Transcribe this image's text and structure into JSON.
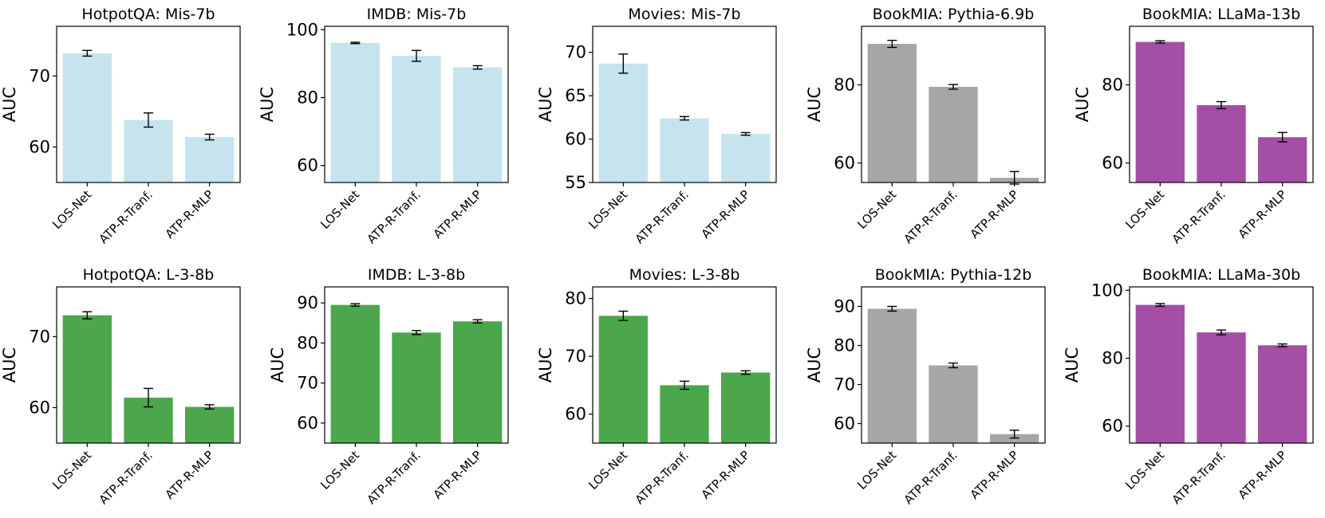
{
  "chart_data": [
    {
      "type": "bar",
      "title": "HotpotQA: Mis-7b",
      "ylabel": "AUC",
      "categories": [
        "LOS-Net",
        "ATP-R-Tranf.",
        "ATP-R-MLP"
      ],
      "values": [
        73.2,
        63.8,
        61.4
      ],
      "errors": [
        0.4,
        1.0,
        0.4
      ],
      "ylim": [
        55,
        77
      ],
      "yticks": [
        60,
        70
      ],
      "color": "#c5e4ee"
    },
    {
      "type": "bar",
      "title": "IMDB: Mis-7b",
      "ylabel": "AUC",
      "categories": [
        "LOS-Net",
        "ATP-R-Tranf.",
        "ATP-R-MLP"
      ],
      "values": [
        96.1,
        92.3,
        88.9
      ],
      "errors": [
        0.2,
        1.6,
        0.5
      ],
      "ylim": [
        55,
        101
      ],
      "yticks": [
        60,
        80,
        100
      ],
      "color": "#c5e4ee"
    },
    {
      "type": "bar",
      "title": "Movies: Mis-7b",
      "ylabel": "AUC",
      "categories": [
        "LOS-Net",
        "ATP-R-Tranf.",
        "ATP-R-MLP"
      ],
      "values": [
        68.7,
        62.4,
        60.6
      ],
      "errors": [
        1.1,
        0.2,
        0.15
      ],
      "ylim": [
        55,
        73
      ],
      "yticks": [
        55,
        60,
        65,
        70
      ],
      "color": "#c5e4ee"
    },
    {
      "type": "bar",
      "title": "BookMIA: Pythia-6.9b",
      "ylabel": "AUC",
      "categories": [
        "LOS-Net",
        "ATP-R-Tranf.",
        "ATP-R-MLP"
      ],
      "values": [
        90.5,
        79.5,
        56.2
      ],
      "errors": [
        0.9,
        0.6,
        1.6
      ],
      "ylim": [
        55,
        95
      ],
      "yticks": [
        60,
        80
      ],
      "color": "#a6a6a6"
    },
    {
      "type": "bar",
      "title": "BookMIA: LLaMa-13b",
      "ylabel": "AUC",
      "categories": [
        "LOS-Net",
        "ATP-R-Tranf.",
        "ATP-R-MLP"
      ],
      "values": [
        91.0,
        74.8,
        66.6
      ],
      "errors": [
        0.3,
        0.9,
        1.2
      ],
      "ylim": [
        55,
        95
      ],
      "yticks": [
        60,
        80
      ],
      "color": "#a54ea5"
    },
    {
      "type": "bar",
      "title": "HotpotQA: L-3-8b",
      "ylabel": "AUC",
      "categories": [
        "LOS-Net",
        "ATP-R-Tranf.",
        "ATP-R-MLP"
      ],
      "values": [
        73.0,
        61.4,
        60.1
      ],
      "errors": [
        0.5,
        1.3,
        0.3
      ],
      "ylim": [
        55,
        77
      ],
      "yticks": [
        60,
        70
      ],
      "color": "#4ca64c"
    },
    {
      "type": "bar",
      "title": "IMDB: L-3-8b",
      "ylabel": "AUC",
      "categories": [
        "LOS-Net",
        "ATP-R-Tranf.",
        "ATP-R-MLP"
      ],
      "values": [
        89.5,
        82.6,
        85.4
      ],
      "errors": [
        0.3,
        0.5,
        0.4
      ],
      "ylim": [
        55,
        94
      ],
      "yticks": [
        60,
        70,
        80,
        90
      ],
      "color": "#4ca64c"
    },
    {
      "type": "bar",
      "title": "Movies: L-3-8b",
      "ylabel": "AUC",
      "categories": [
        "LOS-Net",
        "ATP-R-Tranf.",
        "ATP-R-MLP"
      ],
      "values": [
        77.0,
        65.0,
        67.2
      ],
      "errors": [
        0.8,
        0.7,
        0.3
      ],
      "ylim": [
        55,
        82
      ],
      "yticks": [
        60,
        70,
        80
      ],
      "color": "#4ca64c"
    },
    {
      "type": "bar",
      "title": "BookMIA: Pythia-12b",
      "ylabel": "AUC",
      "categories": [
        "LOS-Net",
        "ATP-R-Tranf.",
        "ATP-R-MLP"
      ],
      "values": [
        89.4,
        74.9,
        57.3
      ],
      "errors": [
        0.6,
        0.6,
        1.0
      ],
      "ylim": [
        55,
        95
      ],
      "yticks": [
        60,
        70,
        80,
        90
      ],
      "color": "#a6a6a6"
    },
    {
      "type": "bar",
      "title": "BookMIA: LLaMa-30b",
      "ylabel": "AUC",
      "categories": [
        "LOS-Net",
        "ATP-R-Tranf.",
        "ATP-R-MLP"
      ],
      "values": [
        95.7,
        87.6,
        83.8
      ],
      "errors": [
        0.4,
        0.7,
        0.4
      ],
      "ylim": [
        55,
        101
      ],
      "yticks": [
        60,
        80,
        100
      ],
      "color": "#a54ea5"
    }
  ]
}
